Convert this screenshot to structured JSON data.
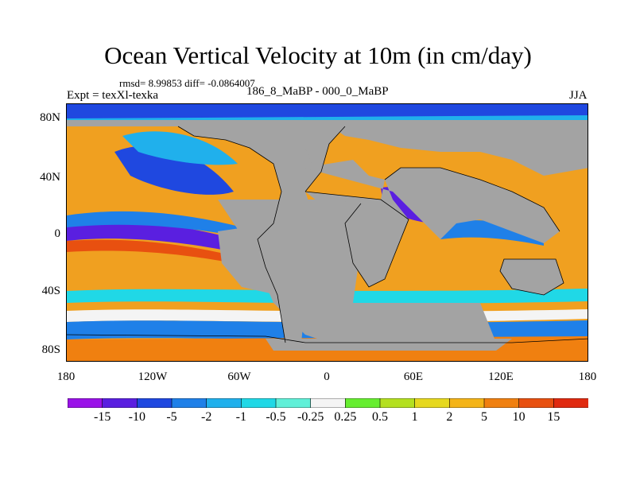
{
  "title": "Ocean Vertical Velocity at 10m (in cm/day)",
  "stats_line": "rmsd= 8.99853 diff= -0.0864007",
  "experiment": "Expt = texXl-texka",
  "experiment_pair": "186_8_MaBP - 000_0_MaBP",
  "season": "JJA",
  "y_ticks": [
    "80N",
    "40N",
    "0",
    "40S",
    "80S"
  ],
  "x_ticks": [
    "180",
    "120W",
    "60W",
    "0",
    "60E",
    "120E",
    "180"
  ],
  "colorbar": {
    "labels": [
      "-15",
      "-10",
      "-5",
      "-2",
      "-1",
      "-0.5",
      "-0.25",
      "0.25",
      "0.5",
      "1",
      "2",
      "5",
      "10",
      "15"
    ],
    "colors": [
      "#9a12e8",
      "#5a1fe0",
      "#1f48e0",
      "#1f80e8",
      "#20b0ec",
      "#20d8e6",
      "#60f0d8",
      "#f4f4f4",
      "#66ee30",
      "#b4e020",
      "#e6d81e",
      "#f4b418",
      "#f08010",
      "#e85010",
      "#e02a10"
    ]
  },
  "colors": {
    "land": "#a3a3a3",
    "background": "#ffffff"
  }
}
